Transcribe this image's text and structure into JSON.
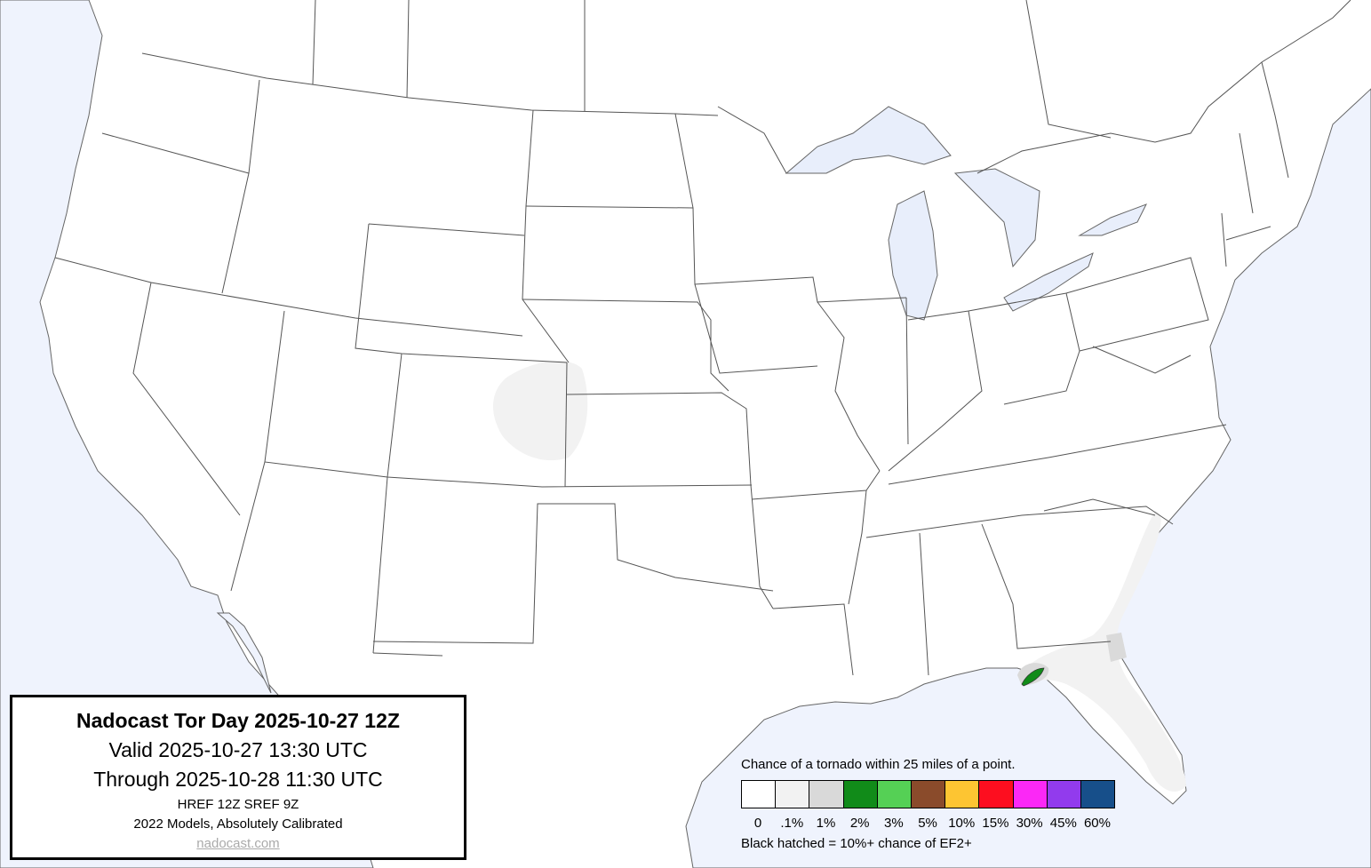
{
  "title_box": {
    "title": "Nadocast Tor Day 2025-10-27 12Z",
    "valid": "Valid 2025-10-27 13:30 UTC",
    "through": "Through 2025-10-28 11:30 UTC",
    "models": "HREF 12Z SREF 9Z",
    "calibration": "2022 Models, Absolutely Calibrated",
    "link": "nadocast.com"
  },
  "legend": {
    "heading": "Chance of a tornado within 25 miles of a point.",
    "bins": [
      {
        "label": "0",
        "color": "#ffffff"
      },
      {
        "label": ".1%",
        "color": "#f2f2f2"
      },
      {
        "label": "1%",
        "color": "#d9d9d9"
      },
      {
        "label": "2%",
        "color": "#118b19"
      },
      {
        "label": "3%",
        "color": "#55d055"
      },
      {
        "label": "5%",
        "color": "#8a4b2b"
      },
      {
        "label": "10%",
        "color": "#fdc532"
      },
      {
        "label": "15%",
        "color": "#fd0e1f"
      },
      {
        "label": "30%",
        "color": "#fb28f6"
      },
      {
        "label": "45%",
        "color": "#923bed"
      },
      {
        "label": "60%",
        "color": "#174f8a"
      }
    ],
    "note": "Black hatched = 10%+ chance of EF2+"
  },
  "map": {
    "water_color": "#eff3fd",
    "land_color": "#ffffff",
    "border_color": "#555555",
    "forecast_areas": [
      {
        "region": "eastern Colorado / western Kansas",
        "probability": ".1%"
      },
      {
        "region": "Southeast coast and Florida peninsula",
        "probability": ".1%"
      },
      {
        "region": "Florida Big Bend / northeast Florida",
        "probability": "1%"
      },
      {
        "region": "Florida Big Bend coast",
        "probability": "2%"
      }
    ]
  }
}
